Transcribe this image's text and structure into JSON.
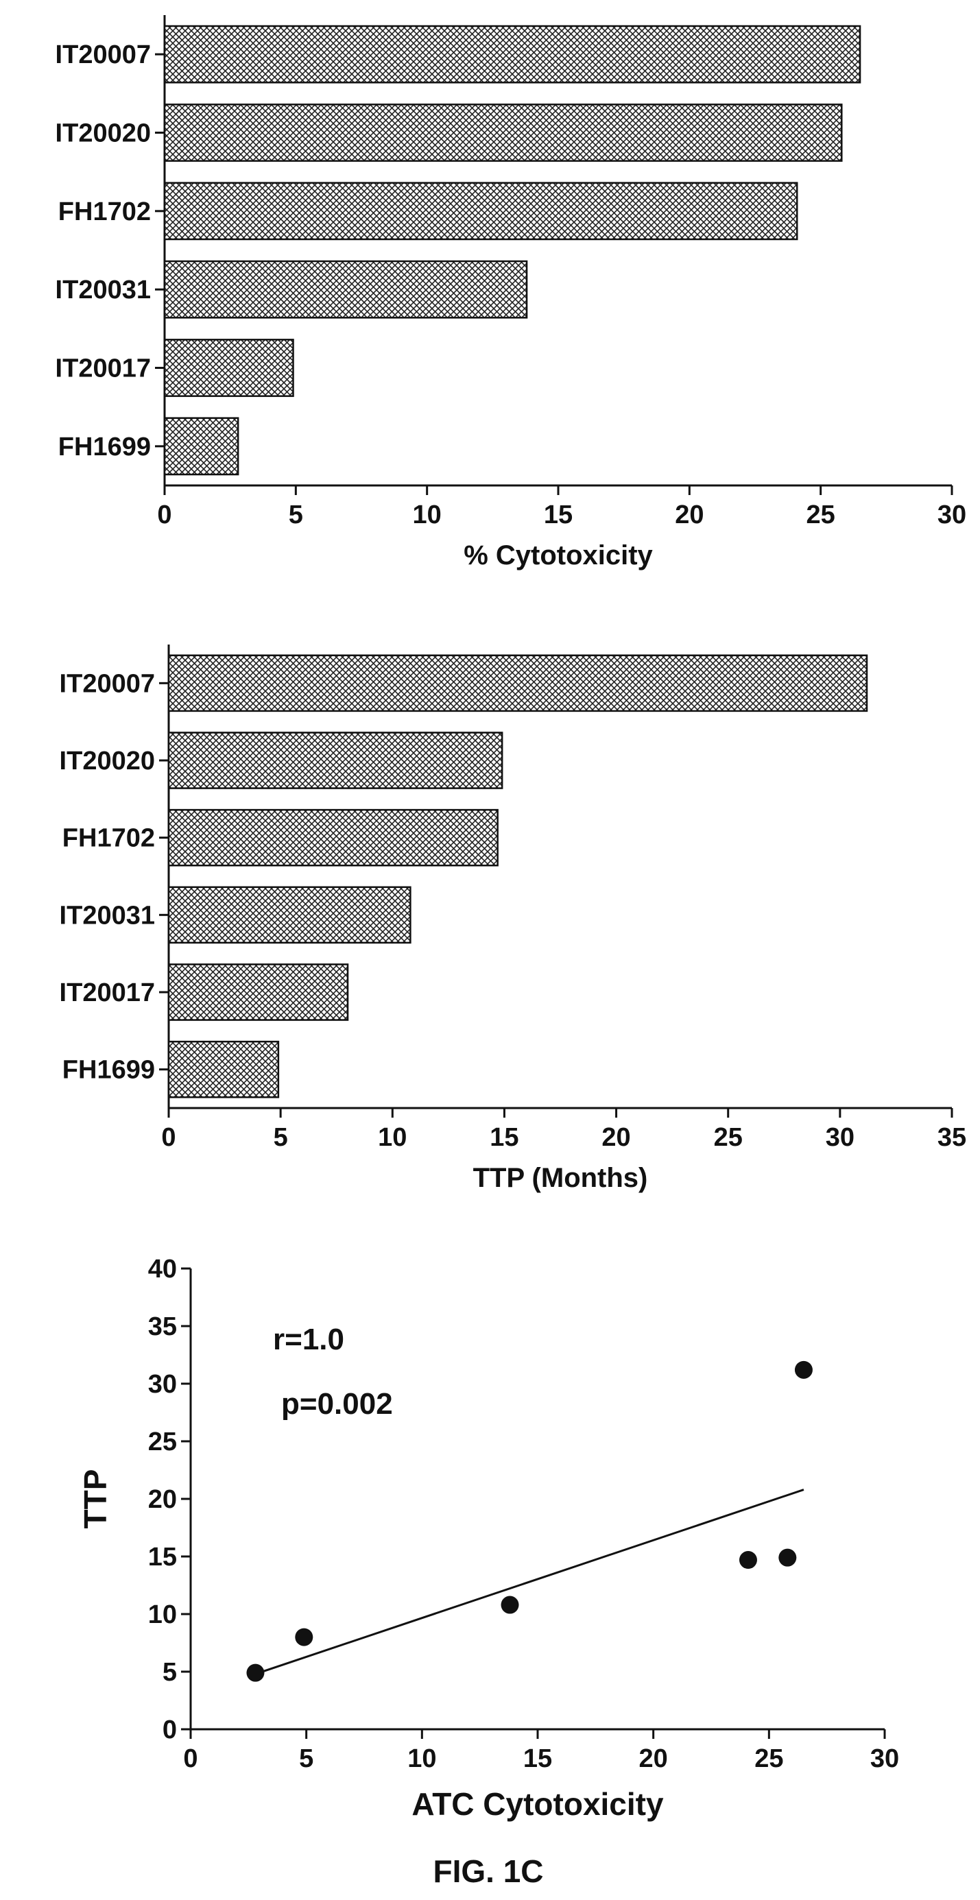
{
  "figure_label": "FIG. 1C",
  "chart_data": [
    {
      "type": "bar",
      "orientation": "horizontal",
      "categories": [
        "IT20007",
        "IT20020",
        "FH1702",
        "IT20031",
        "IT20017",
        "FH1699"
      ],
      "values": [
        26.5,
        25.8,
        24.1,
        13.8,
        4.9,
        2.8
      ],
      "xlabel": "% Cytotoxicity",
      "xlim": [
        0,
        30
      ],
      "xticks": [
        0,
        5,
        10,
        15,
        20,
        25,
        30
      ],
      "grid": false,
      "bar_fill": "crosshatch"
    },
    {
      "type": "bar",
      "orientation": "horizontal",
      "categories": [
        "IT20007",
        "IT20020",
        "FH1702",
        "IT20031",
        "IT20017",
        "FH1699"
      ],
      "values": [
        31.2,
        14.9,
        14.7,
        10.8,
        8.0,
        4.9
      ],
      "xlabel": "TTP (Months)",
      "xlim": [
        0,
        35
      ],
      "xticks": [
        0,
        5,
        10,
        15,
        20,
        25,
        30,
        35
      ],
      "grid": false,
      "bar_fill": "crosshatch"
    },
    {
      "type": "scatter",
      "points": [
        {
          "x": 2.8,
          "y": 4.9
        },
        {
          "x": 4.9,
          "y": 8.0
        },
        {
          "x": 13.8,
          "y": 10.8
        },
        {
          "x": 24.1,
          "y": 14.7
        },
        {
          "x": 25.8,
          "y": 14.9
        },
        {
          "x": 26.5,
          "y": 31.2
        }
      ],
      "fit_line": {
        "x": [
          2.8,
          26.5
        ],
        "y": [
          4.8,
          20.8
        ]
      },
      "xlabel": "ATC Cytotoxicity",
      "ylabel": "TTP",
      "xlim": [
        0,
        30
      ],
      "ylim": [
        0,
        40
      ],
      "xticks": [
        0,
        5,
        10,
        15,
        20,
        25,
        30
      ],
      "yticks": [
        0,
        5,
        10,
        15,
        20,
        25,
        30,
        35,
        40
      ],
      "annotations": [
        "r=1.0",
        "p=0.002"
      ],
      "grid": false
    }
  ]
}
